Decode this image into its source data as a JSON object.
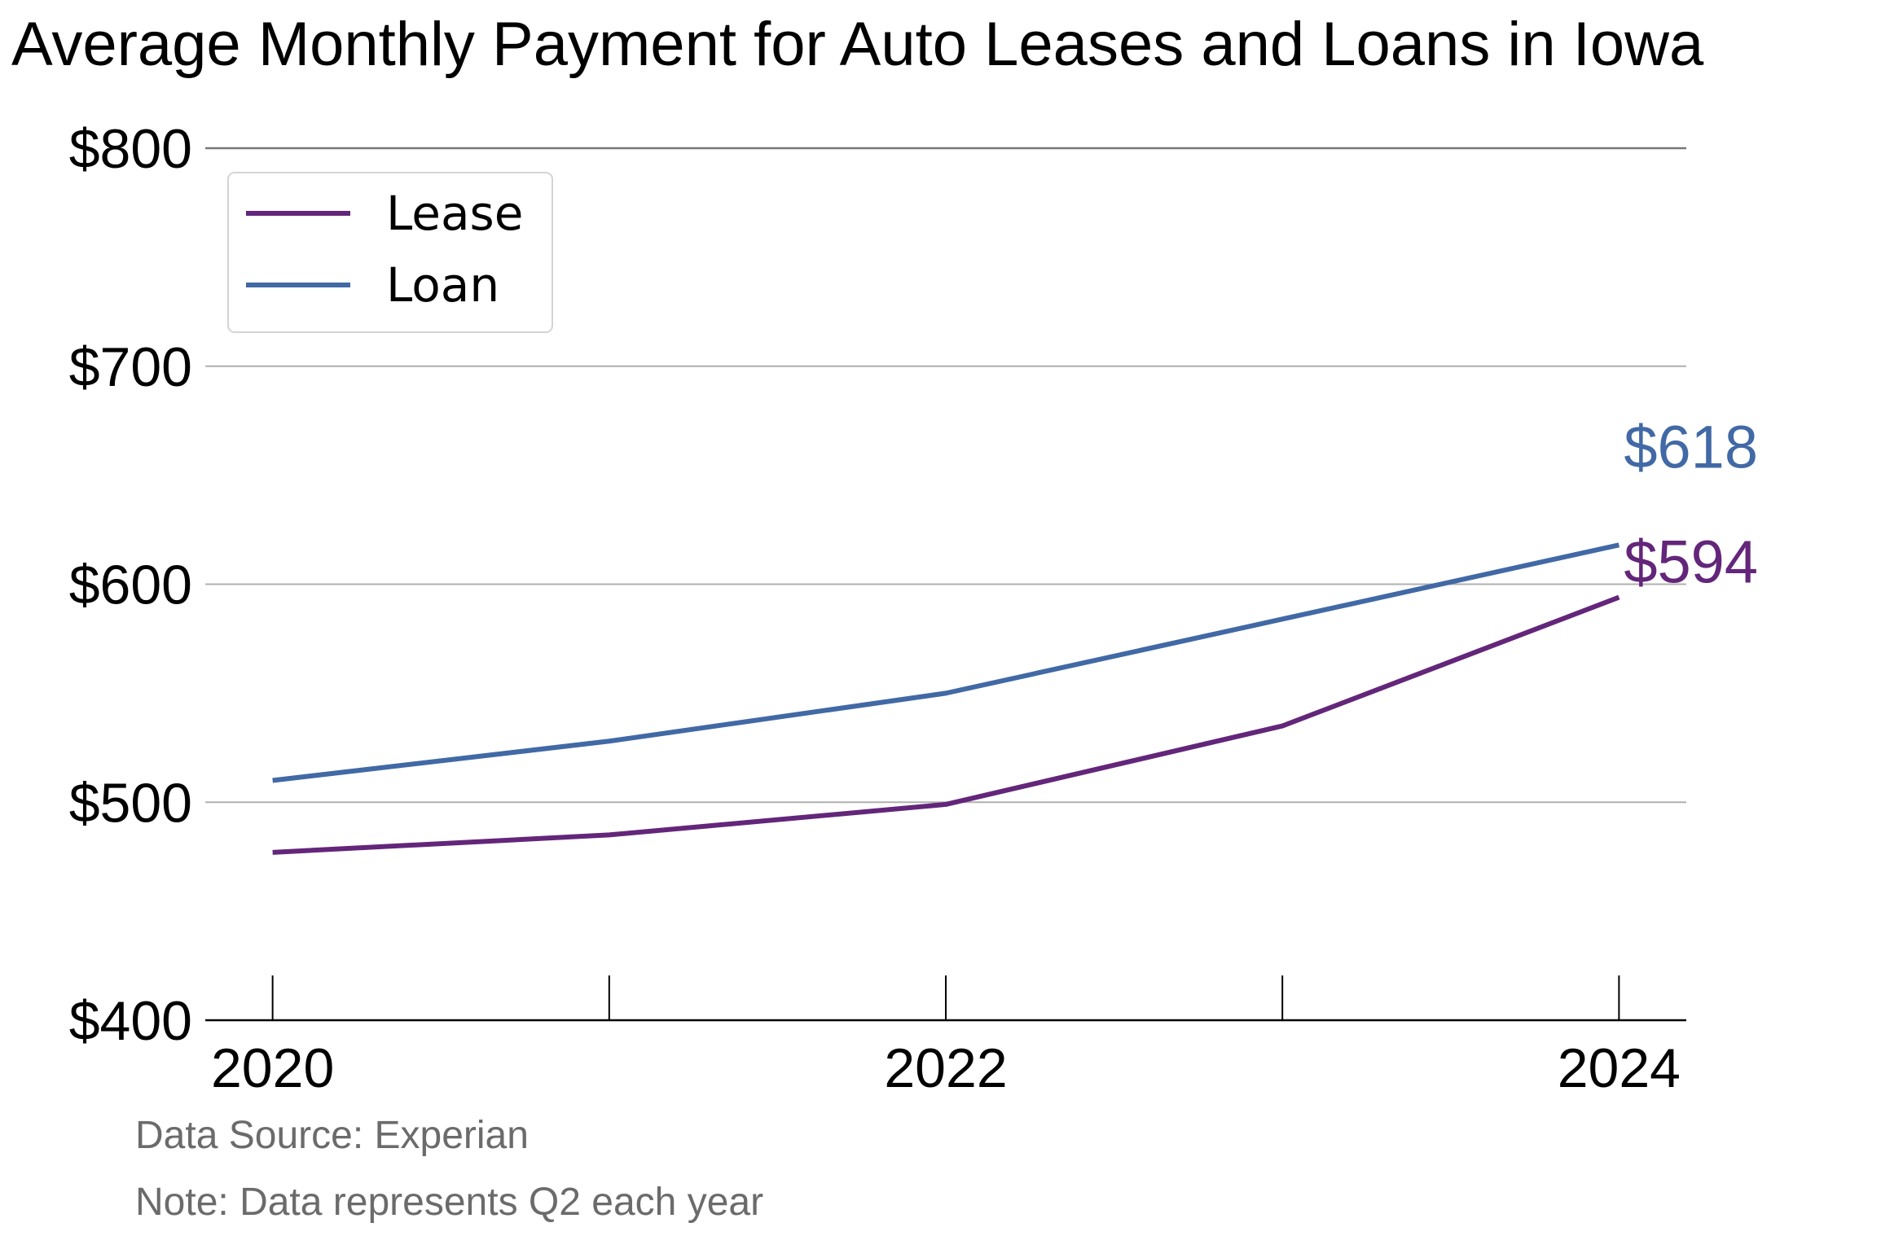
{
  "chart_data": {
    "type": "line",
    "title": "Average Monthly Payment for Auto Leases and Loans in Iowa",
    "xlabel": "",
    "ylabel": "",
    "x": [
      2020,
      2021,
      2022,
      2023,
      2024
    ],
    "x_tick_labels": [
      "2020",
      "2022",
      "2024"
    ],
    "x_tick_values": [
      2020,
      2022,
      2024
    ],
    "y_ticks": [
      {
        "value": 400,
        "label": "$400"
      },
      {
        "value": 500,
        "label": "$500"
      },
      {
        "value": 600,
        "label": "$600"
      },
      {
        "value": 700,
        "label": "$700"
      },
      {
        "value": 800,
        "label": "$800"
      }
    ],
    "ylim": [
      400,
      800
    ],
    "xlim": [
      2019.8,
      2024.2
    ],
    "grid": "horizontal",
    "legend_position": "top-left",
    "series": [
      {
        "name": "Lease",
        "color": "#63267a",
        "values": [
          477,
          485,
          499,
          535,
          594
        ],
        "end_label": "$594"
      },
      {
        "name": "Loan",
        "color": "#4169a5",
        "values": [
          510,
          528,
          550,
          584,
          618
        ],
        "end_label": "$618"
      }
    ],
    "footnotes": [
      "Data Source: Experian",
      "Note: Data represents Q2 each year"
    ]
  }
}
